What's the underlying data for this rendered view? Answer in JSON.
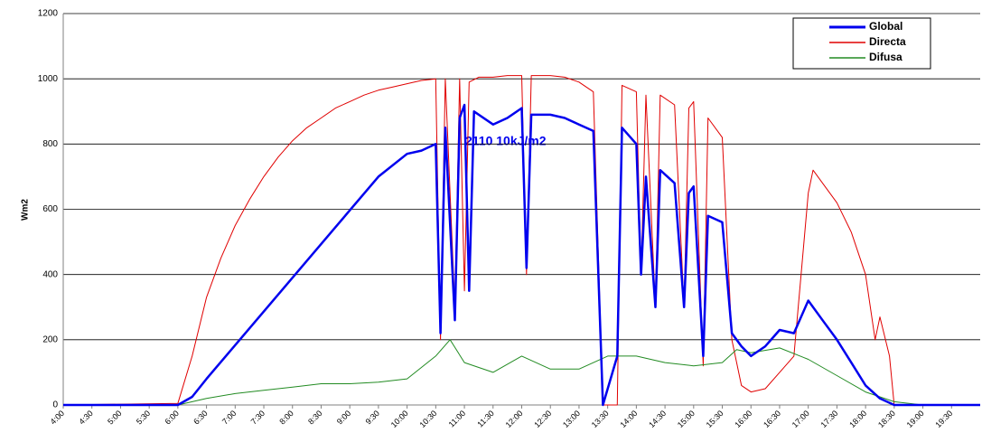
{
  "chart_data": {
    "type": "line",
    "y_label": "Wm2",
    "annotation": "2110 10kJ/m2",
    "xlim": [
      4,
      20
    ],
    "ylim": [
      0,
      1200
    ],
    "yticks": [
      0,
      200,
      400,
      600,
      800,
      1000,
      1200
    ],
    "grid": true,
    "legend": "top-right",
    "xticks": [
      {
        "value": 4,
        "label": "4:00"
      },
      {
        "value": 4.5,
        "label": "4:30"
      },
      {
        "value": 5,
        "label": "5:00"
      },
      {
        "value": 5.5,
        "label": "5:30"
      },
      {
        "value": 6,
        "label": "6:00"
      },
      {
        "value": 6.5,
        "label": "6:30"
      },
      {
        "value": 7,
        "label": "7:00"
      },
      {
        "value": 7.5,
        "label": "7:30"
      },
      {
        "value": 8,
        "label": "8:00"
      },
      {
        "value": 8.5,
        "label": "8:30"
      },
      {
        "value": 9,
        "label": "9:00"
      },
      {
        "value": 9.5,
        "label": "9:30"
      },
      {
        "value": 10,
        "label": "10:00"
      },
      {
        "value": 10.5,
        "label": "10:30"
      },
      {
        "value": 11,
        "label": "11:00"
      },
      {
        "value": 11.5,
        "label": "11:30"
      },
      {
        "value": 12,
        "label": "12:00"
      },
      {
        "value": 12.5,
        "label": "12:30"
      },
      {
        "value": 13,
        "label": "13:00"
      },
      {
        "value": 13.5,
        "label": "13:30"
      },
      {
        "value": 14,
        "label": "14:00"
      },
      {
        "value": 14.5,
        "label": "14:30"
      },
      {
        "value": 15,
        "label": "15:00"
      },
      {
        "value": 15.5,
        "label": "15:30"
      },
      {
        "value": 16,
        "label": "16:00"
      },
      {
        "value": 16.5,
        "label": "16:30"
      },
      {
        "value": 17,
        "label": "17:00"
      },
      {
        "value": 17.5,
        "label": "17:30"
      },
      {
        "value": 18,
        "label": "18:00"
      },
      {
        "value": 18.5,
        "label": "18:30"
      },
      {
        "value": 19,
        "label": "19:00"
      },
      {
        "value": 19.5,
        "label": "19:30"
      }
    ],
    "series": [
      {
        "name": "Global",
        "color": "#0000ee",
        "width": 2.5,
        "x": [
          4,
          6,
          6.25,
          6.5,
          9.5,
          10,
          10.25,
          10.5,
          10.583,
          10.667,
          10.833,
          10.917,
          11,
          11.083,
          11.167,
          11.5,
          11.75,
          12,
          12.083,
          12.167,
          12.5,
          12.75,
          13,
          13.25,
          13.417,
          13.667,
          13.75,
          14,
          14.083,
          14.167,
          14.333,
          14.417,
          14.667,
          14.833,
          14.917,
          15,
          15.167,
          15.25,
          15.5,
          15.667,
          15.833,
          16,
          16.25,
          16.5,
          16.75,
          17,
          17.25,
          17.5,
          17.75,
          18,
          18.25,
          18.5,
          20
        ],
        "values": [
          0,
          0,
          25,
          80,
          700,
          770,
          780,
          800,
          220,
          850,
          260,
          880,
          920,
          350,
          900,
          860,
          880,
          910,
          420,
          890,
          890,
          880,
          860,
          840,
          0,
          150,
          850,
          800,
          400,
          700,
          300,
          720,
          680,
          300,
          650,
          670,
          150,
          580,
          560,
          220,
          180,
          150,
          180,
          230,
          220,
          320,
          260,
          200,
          130,
          60,
          20,
          0,
          0
        ]
      },
      {
        "name": "Directa",
        "color": "#e00000",
        "width": 1,
        "x": [
          4,
          6,
          6.25,
          6.5,
          6.75,
          7,
          7.25,
          7.5,
          7.75,
          8,
          8.25,
          8.5,
          8.75,
          9,
          9.25,
          9.5,
          9.75,
          10,
          10.25,
          10.5,
          10.583,
          10.667,
          10.833,
          10.917,
          11,
          11.083,
          11.25,
          11.5,
          11.75,
          12,
          12.083,
          12.167,
          12.5,
          12.75,
          13,
          13.25,
          13.417,
          13.667,
          13.75,
          14,
          14.083,
          14.167,
          14.333,
          14.417,
          14.667,
          14.833,
          14.917,
          15,
          15.167,
          15.25,
          15.5,
          15.667,
          15.833,
          16,
          16.25,
          16.5,
          16.75,
          17,
          17.083,
          17.25,
          17.5,
          17.75,
          18,
          18.167,
          18.25,
          18.417,
          18.5,
          20
        ],
        "values": [
          0,
          5,
          150,
          330,
          450,
          550,
          630,
          700,
          760,
          810,
          850,
          880,
          910,
          930,
          950,
          965,
          975,
          985,
          995,
          1000,
          200,
          1000,
          300,
          1000,
          350,
          990,
          1005,
          1005,
          1010,
          1010,
          400,
          1010,
          1010,
          1005,
          990,
          960,
          0,
          0,
          980,
          960,
          400,
          950,
          300,
          950,
          920,
          300,
          910,
          930,
          120,
          880,
          820,
          200,
          60,
          40,
          50,
          100,
          150,
          650,
          720,
          680,
          620,
          530,
          400,
          200,
          270,
          150,
          0,
          0
        ]
      },
      {
        "name": "Difusa",
        "color": "#228b22",
        "width": 1,
        "x": [
          4,
          6,
          6.5,
          7,
          7.5,
          8,
          8.5,
          9,
          9.5,
          10,
          10.5,
          10.75,
          11,
          11.5,
          12,
          12.5,
          13,
          13.5,
          14,
          14.5,
          15,
          15.5,
          15.75,
          16,
          16.5,
          17,
          17.5,
          18,
          18.5,
          19,
          20
        ],
        "values": [
          0,
          0,
          20,
          35,
          45,
          55,
          65,
          65,
          70,
          80,
          150,
          200,
          130,
          100,
          150,
          110,
          110,
          150,
          150,
          130,
          120,
          130,
          170,
          160,
          175,
          140,
          90,
          40,
          10,
          0,
          0
        ]
      }
    ]
  }
}
